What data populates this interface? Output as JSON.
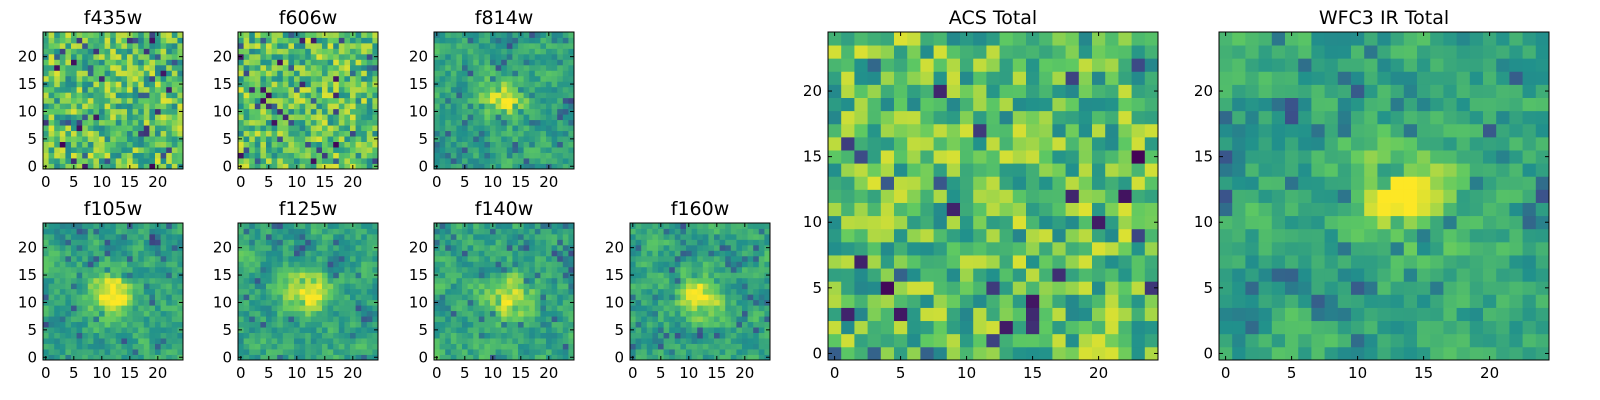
{
  "figure": {
    "colormap": [
      "#440154",
      "#3b528b",
      "#21918c",
      "#5ec962",
      "#fde725"
    ]
  },
  "chart_data": [
    {
      "type": "heatmap",
      "title": "f435w",
      "grid_size": 25,
      "xticks": [
        "0",
        "5",
        "10",
        "15",
        "20"
      ],
      "yticks": [
        "0",
        "5",
        "10",
        "15",
        "20"
      ],
      "peak": null,
      "values": []
    },
    {
      "type": "heatmap",
      "title": "f606w",
      "grid_size": 25,
      "xticks": [
        "0",
        "5",
        "10",
        "15",
        "20"
      ],
      "yticks": [
        "0",
        "5",
        "10",
        "15",
        "20"
      ],
      "peak": null,
      "values": []
    },
    {
      "type": "heatmap",
      "title": "f814w",
      "grid_size": 25,
      "xticks": [
        "0",
        "5",
        "10",
        "15",
        "20"
      ],
      "yticks": [
        "0",
        "5",
        "10",
        "15",
        "20"
      ],
      "peak": [
        12,
        12
      ],
      "values": []
    },
    {
      "type": "heatmap",
      "title": "f105w",
      "grid_size": 25,
      "xticks": [
        "0",
        "5",
        "10",
        "15",
        "20"
      ],
      "yticks": [
        "0",
        "5",
        "10",
        "15",
        "20"
      ],
      "peak": [
        12,
        12
      ],
      "values": []
    },
    {
      "type": "heatmap",
      "title": "f125w",
      "grid_size": 25,
      "xticks": [
        "0",
        "5",
        "10",
        "15",
        "20"
      ],
      "yticks": [
        "0",
        "5",
        "10",
        "15",
        "20"
      ],
      "peak": [
        12,
        12
      ],
      "values": []
    },
    {
      "type": "heatmap",
      "title": "f140w",
      "grid_size": 25,
      "xticks": [
        "0",
        "5",
        "10",
        "15",
        "20"
      ],
      "yticks": [
        "0",
        "5",
        "10",
        "15",
        "20"
      ],
      "peak": [
        13,
        11
      ],
      "values": []
    },
    {
      "type": "heatmap",
      "title": "f160w",
      "grid_size": 25,
      "xticks": [
        "0",
        "5",
        "10",
        "15",
        "20"
      ],
      "yticks": [
        "0",
        "5",
        "10",
        "15",
        "20"
      ],
      "peak": [
        12,
        11
      ],
      "values": []
    },
    {
      "type": "heatmap",
      "title": "ACS Total",
      "grid_size": 25,
      "xticks": [
        "0",
        "5",
        "10",
        "15",
        "20"
      ],
      "yticks": [
        "0",
        "5",
        "10",
        "15",
        "20"
      ],
      "peak": null,
      "values": []
    },
    {
      "type": "heatmap",
      "title": "WFC3 IR Total",
      "grid_size": 25,
      "xticks": [
        "0",
        "5",
        "10",
        "15",
        "20"
      ],
      "yticks": [
        "0",
        "5",
        "10",
        "15",
        "20"
      ],
      "peak": [
        13,
        12
      ],
      "values": []
    }
  ]
}
